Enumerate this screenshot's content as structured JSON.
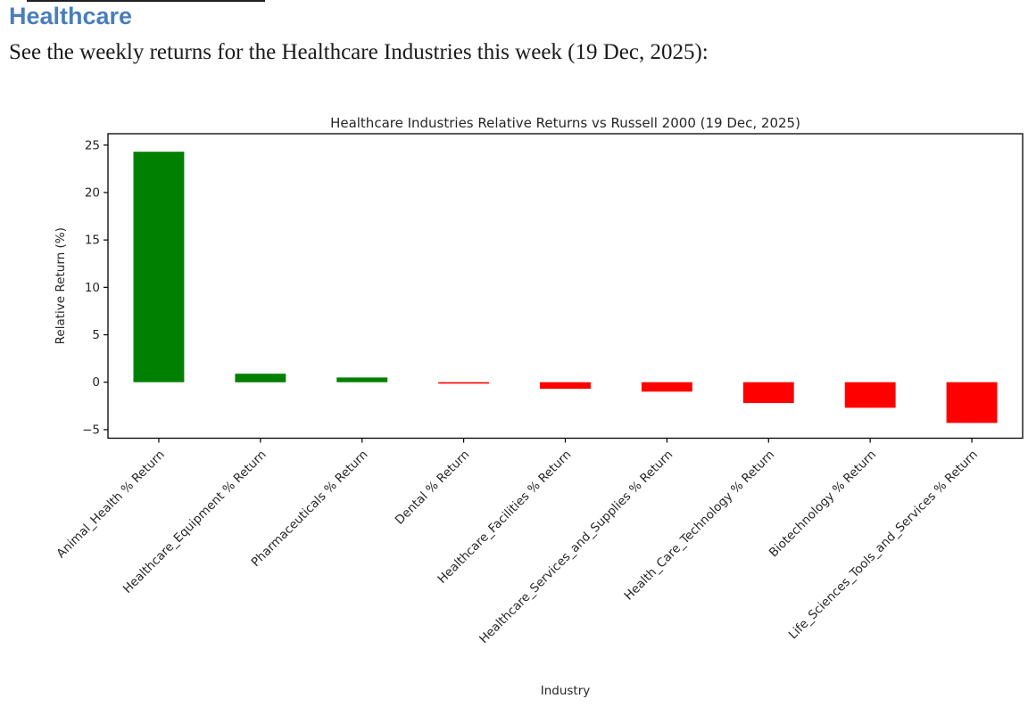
{
  "page": {
    "heading": "Healthcare",
    "subtitle": "See the weekly returns for the Healthcare Industries this week (19 Dec, 2025):"
  },
  "colors": {
    "heading": "#4a7ebb",
    "body_text": "#1a1a1a",
    "positive_bar": "#008000",
    "negative_bar": "#ff0000",
    "axis": "#000000"
  },
  "chart_data": {
    "type": "bar",
    "title": "Healthcare Industries Relative Returns vs Russell 2000 (19 Dec, 2025)",
    "xlabel": "Industry",
    "ylabel": "Relative Return (%)",
    "categories": [
      "Animal_Health % Return",
      "Healthcare_Equipment % Return",
      "Pharmaceuticals % Return",
      "Dental % Return",
      "Healthcare_Facilities % Return",
      "Healthcare_Services_and_Supplies % Return",
      "Health_Care_Technology % Return",
      "Biotechnology % Return",
      "Life_Sciences_Tools_and_Services % Return"
    ],
    "values": [
      24.3,
      0.9,
      0.5,
      -0.15,
      -0.7,
      -1.0,
      -2.2,
      -2.7,
      -4.3
    ],
    "ylim": [
      -5.9,
      26.2
    ],
    "yticks": [
      -5,
      0,
      5,
      10,
      15,
      20,
      25
    ],
    "grid": false,
    "legend": null,
    "bar_width_fraction": 0.5,
    "xtick_rotation": 45,
    "positive_color": "#008000",
    "negative_color": "#ff0000"
  }
}
